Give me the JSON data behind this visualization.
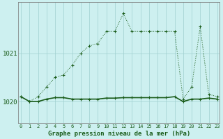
{
  "title": "Graphe pression niveau de la mer (hPa)",
  "background_color": "#cdf0f0",
  "line_color": "#1a5c1a",
  "grid_color": "#a0d0d0",
  "x_labels": [
    "0",
    "1",
    "2",
    "3",
    "4",
    "5",
    "6",
    "7",
    "8",
    "9",
    "10",
    "11",
    "12",
    "13",
    "14",
    "15",
    "16",
    "17",
    "18",
    "19",
    "20",
    "21",
    "22",
    "23"
  ],
  "y_ticks": [
    1020,
    1021
  ],
  "ylim": [
    1019.55,
    1022.05
  ],
  "xlim": [
    -0.3,
    23.3
  ],
  "y_dotted": [
    1020.1,
    1020.0,
    1020.1,
    1020.3,
    1020.5,
    1020.55,
    1020.75,
    1021.0,
    1021.15,
    1021.2,
    1021.45,
    1021.45,
    1021.82,
    1021.45,
    1021.45,
    1021.45,
    1021.45,
    1021.45,
    1021.45,
    1020.05,
    1020.3,
    1021.55,
    1020.15,
    1020.1
  ],
  "y_solid": [
    1020.1,
    1020.0,
    1020.0,
    1020.05,
    1020.08,
    1020.08,
    1020.05,
    1020.05,
    1020.05,
    1020.05,
    1020.07,
    1020.07,
    1020.08,
    1020.08,
    1020.08,
    1020.08,
    1020.08,
    1020.08,
    1020.1,
    1020.0,
    1020.05,
    1020.05,
    1020.07,
    1020.05
  ]
}
